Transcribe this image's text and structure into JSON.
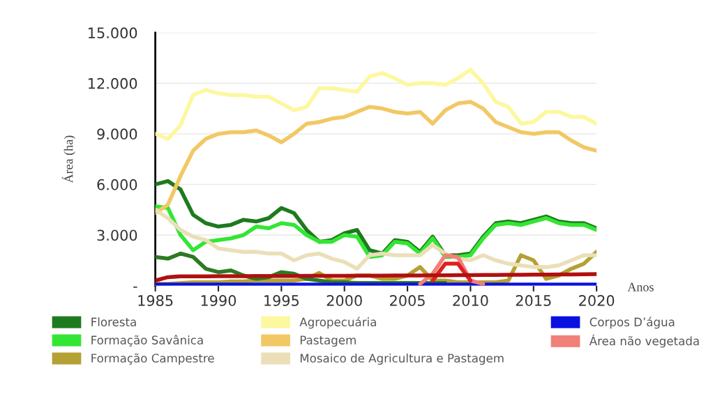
{
  "chart_data": {
    "type": "line",
    "xlabel": "Anos",
    "ylabel": "Área (ha)",
    "x": [
      1985,
      1986,
      1987,
      1988,
      1989,
      1990,
      1991,
      1992,
      1993,
      1994,
      1995,
      1996,
      1997,
      1998,
      1999,
      2000,
      2001,
      2002,
      2003,
      2004,
      2005,
      2006,
      2007,
      2008,
      2009,
      2010,
      2011,
      2012,
      2013,
      2014,
      2015,
      2016,
      2017,
      2018,
      2019,
      2020
    ],
    "xlim": [
      1985,
      2020
    ],
    "xticks": [
      1985,
      1990,
      1995,
      2000,
      2005,
      2010,
      2015,
      2020
    ],
    "ylim": [
      0,
      15000
    ],
    "yticks": [
      {
        "value": 0,
        "label": "-"
      },
      {
        "value": 3000,
        "label": "3.000"
      },
      {
        "value": 6000,
        "label": "6.000"
      },
      {
        "value": 9000,
        "label": "9.000"
      },
      {
        "value": 12000,
        "label": "12.000"
      },
      {
        "value": 15000,
        "label": "15.000"
      }
    ],
    "grid": "y",
    "legend": "bottom",
    "marker": "none",
    "line_style": "solid",
    "series": [
      {
        "name": "Floresta",
        "color": "#1e7a1e",
        "values": [
          6000,
          6200,
          5700,
          4200,
          3700,
          3500,
          3600,
          3900,
          3800,
          4000,
          4600,
          4300,
          3300,
          2600,
          2700,
          3100,
          3300,
          2100,
          1900,
          2700,
          2600,
          2000,
          2900,
          1800,
          1800,
          1900,
          2900,
          3700,
          3800,
          3700,
          3900,
          4100,
          3800,
          3700,
          3700,
          3400
        ]
      },
      {
        "name": "Formação Savânica",
        "color": "#33e633",
        "values": [
          4700,
          4600,
          3000,
          2100,
          2600,
          2700,
          2800,
          3000,
          3500,
          3400,
          3700,
          3600,
          3000,
          2600,
          2600,
          3000,
          2900,
          1700,
          1800,
          2600,
          2500,
          1900,
          2800,
          1700,
          1700,
          1800,
          2800,
          3600,
          3700,
          3600,
          3800,
          4000,
          3700,
          3600,
          3600,
          3300
        ]
      },
      {
        "name": "Formação Campestre",
        "color": "#b5a033",
        "values": [
          100,
          100,
          150,
          200,
          200,
          200,
          250,
          250,
          300,
          300,
          300,
          300,
          400,
          750,
          300,
          300,
          600,
          600,
          400,
          400,
          600,
          1100,
          300,
          300,
          200,
          200,
          200,
          200,
          300,
          1800,
          1500,
          400,
          600,
          1000,
          1300,
          2000
        ]
      },
      {
        "name": "Agropecuária",
        "color": "#fdf7a0",
        "values": [
          9000,
          8700,
          9500,
          11300,
          11600,
          11400,
          11300,
          11300,
          11200,
          11200,
          10800,
          10400,
          10600,
          11700,
          11700,
          11600,
          11500,
          12400,
          12600,
          12300,
          11900,
          12000,
          12000,
          11900,
          12300,
          12800,
          12000,
          10900,
          10600,
          9600,
          9700,
          10300,
          10300,
          10000,
          10000,
          9600
        ]
      },
      {
        "name": "Pastagem",
        "color": "#f2c865",
        "values": [
          4300,
          4800,
          6500,
          8000,
          8700,
          9000,
          9100,
          9100,
          9200,
          8900,
          8500,
          9000,
          9600,
          9700,
          9900,
          10000,
          10300,
          10600,
          10500,
          10300,
          10200,
          10300,
          9600,
          10400,
          10800,
          10900,
          10500,
          9700,
          9400,
          9100,
          9000,
          9100,
          9100,
          8600,
          8200,
          8000
        ]
      },
      {
        "name": "Mosaico de Agricultura e Pastagem",
        "color": "#eadfb8",
        "values": [
          4500,
          4000,
          3300,
          2900,
          2700,
          2200,
          2100,
          2000,
          2000,
          1900,
          1900,
          1500,
          1800,
          1900,
          1600,
          1400,
          1000,
          1800,
          1900,
          1800,
          1800,
          1800,
          2400,
          1900,
          1600,
          1500,
          1800,
          1500,
          1300,
          1200,
          1100,
          1100,
          1200,
          1500,
          1800,
          1800
        ]
      },
      {
        "color": "#2d7a22",
        "values": [
          1700,
          1600,
          1900,
          1700,
          1000,
          800,
          900,
          600,
          400,
          500,
          800,
          700,
          400,
          300,
          200,
          200,
          150,
          150,
          150,
          150,
          150,
          150,
          150,
          150,
          null,
          null,
          null,
          null,
          null,
          null,
          null,
          null,
          null,
          null,
          null,
          null
        ]
      },
      {
        "name": "Corpos D’água",
        "color": "#0a10e0",
        "values": [
          60,
          60,
          60,
          60,
          60,
          60,
          60,
          60,
          60,
          60,
          60,
          60,
          60,
          60,
          60,
          60,
          60,
          60,
          60,
          60,
          60,
          60,
          60,
          60,
          60,
          60,
          60,
          60,
          60,
          60,
          60,
          60,
          60,
          60,
          60,
          60
        ]
      },
      {
        "name": "Área não vegetada",
        "color": "#f08078",
        "values": [
          null,
          null,
          null,
          null,
          null,
          null,
          null,
          null,
          null,
          null,
          null,
          null,
          null,
          null,
          null,
          null,
          null,
          null,
          null,
          null,
          null,
          100,
          700,
          1800,
          1700,
          300,
          100,
          null,
          null,
          null,
          null,
          null,
          null,
          null,
          null,
          null
        ]
      },
      {
        "color": "#e02020",
        "values": [
          null,
          null,
          null,
          null,
          null,
          null,
          null,
          null,
          null,
          null,
          null,
          null,
          null,
          null,
          null,
          null,
          null,
          null,
          null,
          null,
          null,
          null,
          300,
          1300,
          1300,
          300,
          null,
          null,
          null,
          null,
          null,
          null,
          null,
          null,
          null,
          null
        ]
      },
      {
        "color": "#b01010",
        "values": [
          300,
          500,
          550,
          550,
          550,
          560,
          560,
          560,
          570,
          570,
          570,
          570,
          580,
          580,
          580,
          580,
          590,
          590,
          590,
          600,
          600,
          600,
          610,
          610,
          620,
          620,
          630,
          630,
          640,
          640,
          650,
          650,
          660,
          660,
          670,
          680
        ]
      }
    ]
  }
}
